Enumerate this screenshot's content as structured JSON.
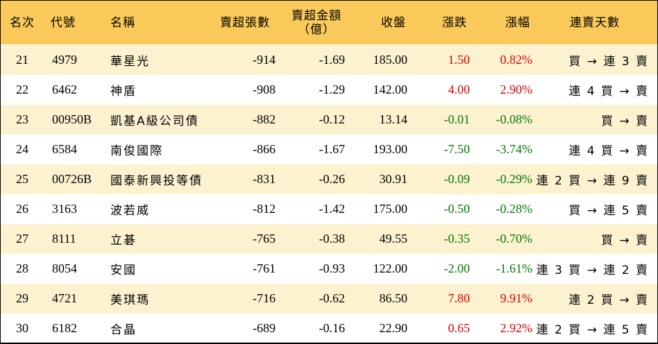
{
  "headers": {
    "rank": "名次",
    "code": "代號",
    "name": "名稱",
    "net_sell_count": "賣超張數",
    "net_sell_amount_l1": "賣超金額",
    "net_sell_amount_l2": "（億）",
    "close": "收盤",
    "change": "漲跌",
    "change_pct": "漲幅",
    "consecutive_sell_days": "連賣天數"
  },
  "colors": {
    "header_bg": "#f9c95a",
    "odd_row_bg": "#fdf2d0",
    "up": "#e00000",
    "down": "#007a00"
  },
  "rows": [
    {
      "rank": "21",
      "code": "4979",
      "name": "華星光",
      "count": "-914",
      "amount": "-1.69",
      "close": "185.00",
      "change": "1.50",
      "pct": "0.82%",
      "dir": "up",
      "streak": "買 → 連 3 賣"
    },
    {
      "rank": "22",
      "code": "6462",
      "name": "神盾",
      "count": "-908",
      "amount": "-1.29",
      "close": "142.00",
      "change": "4.00",
      "pct": "2.90%",
      "dir": "up",
      "streak": "連 4 買 → 賣"
    },
    {
      "rank": "23",
      "code": "00950B",
      "name": "凱基A級公司債",
      "count": "-882",
      "amount": "-0.12",
      "close": "13.14",
      "change": "-0.01",
      "pct": "-0.08%",
      "dir": "down",
      "streak": "買 → 賣"
    },
    {
      "rank": "24",
      "code": "6584",
      "name": "南俊國際",
      "count": "-866",
      "amount": "-1.67",
      "close": "193.00",
      "change": "-7.50",
      "pct": "-3.74%",
      "dir": "down",
      "streak": "連 4 買 → 賣"
    },
    {
      "rank": "25",
      "code": "00726B",
      "name": "國泰新興投等債",
      "count": "-831",
      "amount": "-0.26",
      "close": "30.91",
      "change": "-0.09",
      "pct": "-0.29%",
      "dir": "down",
      "streak": "連 2 買 → 連 9 賣"
    },
    {
      "rank": "26",
      "code": "3163",
      "name": "波若威",
      "count": "-812",
      "amount": "-1.42",
      "close": "175.00",
      "change": "-0.50",
      "pct": "-0.28%",
      "dir": "down",
      "streak": "買 → 連 5 賣"
    },
    {
      "rank": "27",
      "code": "8111",
      "name": "立碁",
      "count": "-765",
      "amount": "-0.38",
      "close": "49.55",
      "change": "-0.35",
      "pct": "-0.70%",
      "dir": "down",
      "streak": "買 → 賣"
    },
    {
      "rank": "28",
      "code": "8054",
      "name": "安國",
      "count": "-761",
      "amount": "-0.93",
      "close": "122.00",
      "change": "-2.00",
      "pct": "-1.61%",
      "dir": "down",
      "streak": "連 3 買 → 連 2 賣"
    },
    {
      "rank": "29",
      "code": "4721",
      "name": "美琪瑪",
      "count": "-716",
      "amount": "-0.62",
      "close": "86.50",
      "change": "7.80",
      "pct": "9.91%",
      "dir": "up",
      "streak": "連 2 買 → 賣"
    },
    {
      "rank": "30",
      "code": "6182",
      "name": "合晶",
      "count": "-689",
      "amount": "-0.16",
      "close": "22.90",
      "change": "0.65",
      "pct": "2.92%",
      "dir": "up",
      "streak": "連 2 買 → 連 5 賣"
    }
  ]
}
